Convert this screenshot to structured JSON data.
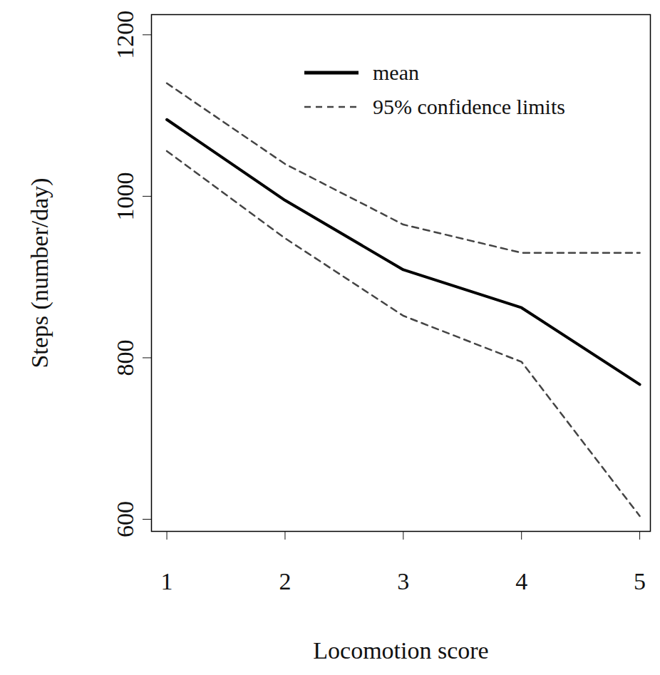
{
  "chart_data": {
    "type": "line",
    "x_label": "Locomotion score",
    "y_label": "Steps (number/day)",
    "x": [
      1,
      2,
      3,
      4,
      5
    ],
    "series": [
      {
        "name": "mean",
        "color": "#000000",
        "line_style": "solid",
        "values": [
          1095,
          995,
          909,
          862,
          767
        ]
      },
      {
        "name": "95% confidence limits",
        "color": "#444444",
        "line_style": "dashed",
        "lower": [
          1056,
          948,
          852,
          795,
          604
        ],
        "upper": [
          1140,
          1040,
          965,
          930,
          930
        ]
      }
    ],
    "xlim": [
      0.87,
      5.09
    ],
    "xticks": [
      1,
      2,
      3,
      4,
      5
    ],
    "ylim": [
      585,
      1225
    ],
    "yticks": [
      600,
      800,
      1000,
      1200
    ],
    "grid": false,
    "legend": "top-right"
  }
}
